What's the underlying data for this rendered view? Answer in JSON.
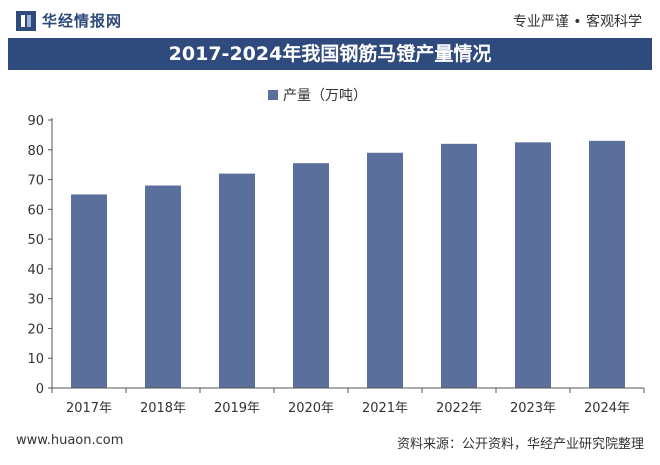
{
  "header": {
    "brand": "华经情报网",
    "slogan": "专业严谨 • 客观科学"
  },
  "title": "2017-2024年我国钢筋马镫产量情况",
  "footer": {
    "url": "www.huaon.com",
    "source": "资料来源：公开资料，华经产业研究院整理"
  },
  "colors": {
    "accent": "#2f4a7d",
    "bar": "#5b6f9c",
    "axis": "#555555"
  },
  "chart_data": {
    "type": "bar",
    "categories": [
      "2017年",
      "2018年",
      "2019年",
      "2020年",
      "2021年",
      "2022年",
      "2023年",
      "2024年"
    ],
    "series": [
      {
        "name": "产量（万吨）",
        "values": [
          65,
          68,
          72,
          75.5,
          79,
          82,
          82.5,
          83
        ]
      }
    ],
    "ylim": [
      0,
      90
    ],
    "yticks": [
      0,
      10,
      20,
      30,
      40,
      50,
      60,
      70,
      80,
      90
    ],
    "grid": false,
    "legend_position": "top-center"
  }
}
